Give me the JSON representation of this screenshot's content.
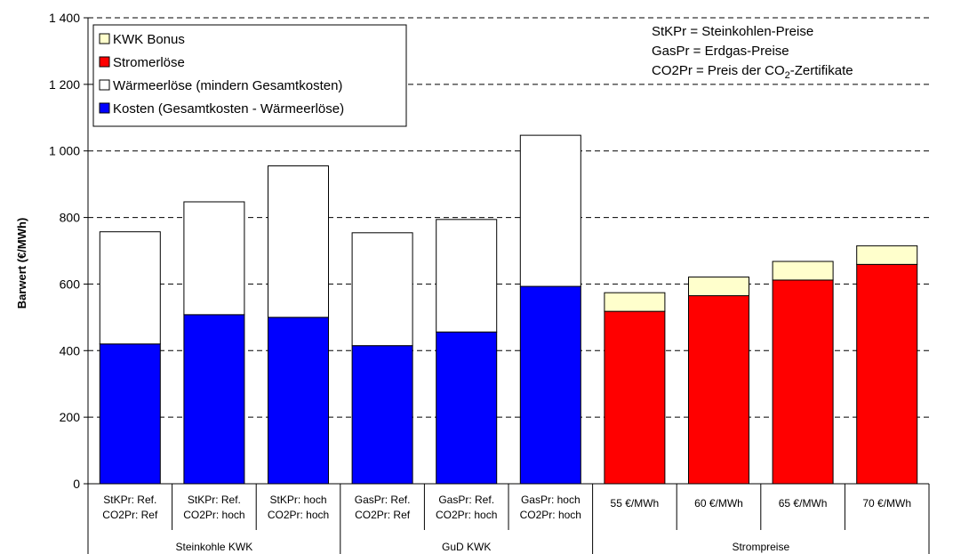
{
  "chart_data": {
    "type": "bar",
    "stacked": true,
    "ylabel": "Barwert (€/MWh)",
    "ylim": [
      0,
      1400
    ],
    "yticks": [
      0,
      200,
      400,
      600,
      800,
      1000,
      1200,
      1400
    ],
    "ytick_labels": [
      "0",
      "200",
      "400",
      "600",
      "800",
      "1 000",
      "1 200",
      "1 400"
    ],
    "grid": "horizontal dashed",
    "categories": [
      [
        "StKPr: Ref.",
        "CO2Pr: Ref"
      ],
      [
        "StKPr: Ref.",
        "CO2Pr: hoch"
      ],
      [
        "StKPr: hoch",
        "CO2Pr: hoch"
      ],
      [
        "GasPr: Ref.",
        "CO2Pr: Ref"
      ],
      [
        "GasPr: Ref.",
        "CO2Pr: hoch"
      ],
      [
        "GasPr: hoch",
        "CO2Pr: hoch"
      ],
      [
        "55 €/MWh"
      ],
      [
        "60 €/MWh"
      ],
      [
        "65 €/MWh"
      ],
      [
        "70 €/MWh"
      ]
    ],
    "groups": [
      {
        "label": "Steinkohle KWK",
        "start": 0,
        "end": 2
      },
      {
        "label": "GuD KWK",
        "start": 3,
        "end": 5
      },
      {
        "label": "Strompreise",
        "start": 6,
        "end": 9
      }
    ],
    "series": [
      {
        "name": "Kosten (Gesamtkosten - Wärmeerlöse)",
        "color": "#0000ff",
        "values": [
          420,
          508,
          500,
          415,
          456,
          593,
          0,
          0,
          0,
          0
        ]
      },
      {
        "name": "Wärmeerlöse (mindern Gesamtkosten)",
        "color": "#ffffff",
        "values": [
          337,
          339,
          455,
          339,
          338,
          454,
          0,
          0,
          0,
          0
        ]
      },
      {
        "name": "Stromerlöse",
        "color": "#ff0000",
        "values": [
          0,
          0,
          0,
          0,
          0,
          0,
          518,
          565,
          612,
          659
        ]
      },
      {
        "name": "KWK Bonus",
        "color": "#ffffcc",
        "values": [
          0,
          0,
          0,
          0,
          0,
          0,
          56,
          56,
          56,
          56
        ]
      }
    ],
    "legend": {
      "position": "top-left",
      "order": [
        "KWK Bonus",
        "Stromerlöse",
        "Wärmeerlöse (mindern Gesamtkosten)",
        "Kosten (Gesamtkosten - Wärmeerlöse)"
      ]
    },
    "annotations": [
      [
        "StKPr  = Steinkohlen-Preise"
      ],
      [
        "GasPr = Erdgas-Preise"
      ],
      [
        "CO2Pr = Preis der CO",
        "2",
        "-Zertifikate"
      ]
    ]
  }
}
